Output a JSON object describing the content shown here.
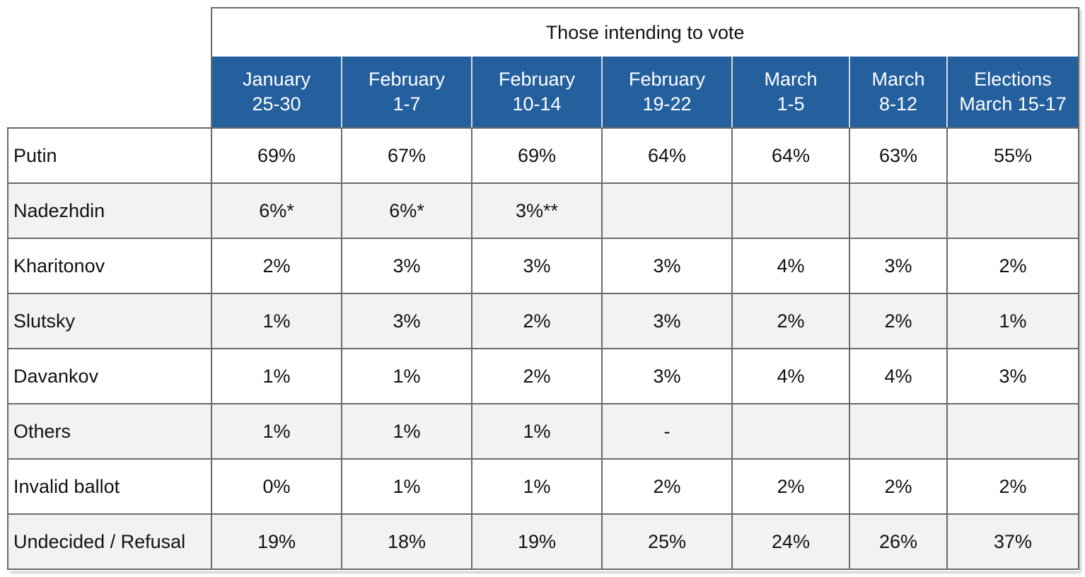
{
  "chart_data": {
    "type": "table",
    "group_header": "Those intending to vote",
    "columns": [
      [
        "January",
        "25-30"
      ],
      [
        "February",
        "1-7"
      ],
      [
        "February",
        "10-14"
      ],
      [
        "February",
        "19-22"
      ],
      [
        "March",
        "1-5"
      ],
      [
        "March",
        "8-12"
      ],
      [
        "Elections",
        "March 15-17"
      ]
    ],
    "rows": [
      {
        "label": "Putin",
        "values": [
          "69%",
          "67%",
          "69%",
          "64%",
          "64%",
          "63%",
          "55%"
        ]
      },
      {
        "label": "Nadezhdin",
        "values": [
          "6%*",
          "6%*",
          "3%**",
          "",
          "",
          "",
          ""
        ]
      },
      {
        "label": "Kharitonov",
        "values": [
          "2%",
          "3%",
          "3%",
          "3%",
          "4%",
          "3%",
          "2%"
        ]
      },
      {
        "label": "Slutsky",
        "values": [
          "1%",
          "3%",
          "2%",
          "3%",
          "2%",
          "2%",
          "1%"
        ]
      },
      {
        "label": "Davankov",
        "values": [
          "1%",
          "1%",
          "2%",
          "3%",
          "4%",
          "4%",
          "3%"
        ]
      },
      {
        "label": "Others",
        "values": [
          "1%",
          "1%",
          "1%",
          "-",
          "",
          "",
          ""
        ]
      },
      {
        "label": "Invalid ballot",
        "values": [
          "0%",
          "1%",
          "1%",
          "2%",
          "2%",
          "2%",
          "2%"
        ]
      },
      {
        "label": "Undecided / Refusal",
        "values": [
          "19%",
          "18%",
          "19%",
          "25%",
          "24%",
          "26%",
          "37%"
        ]
      }
    ]
  },
  "colors": {
    "header_bg": "#245f9e",
    "header_text": "#ffffff",
    "alt_row_bg": "#f2f2f2",
    "border": "#6b6b6b"
  }
}
